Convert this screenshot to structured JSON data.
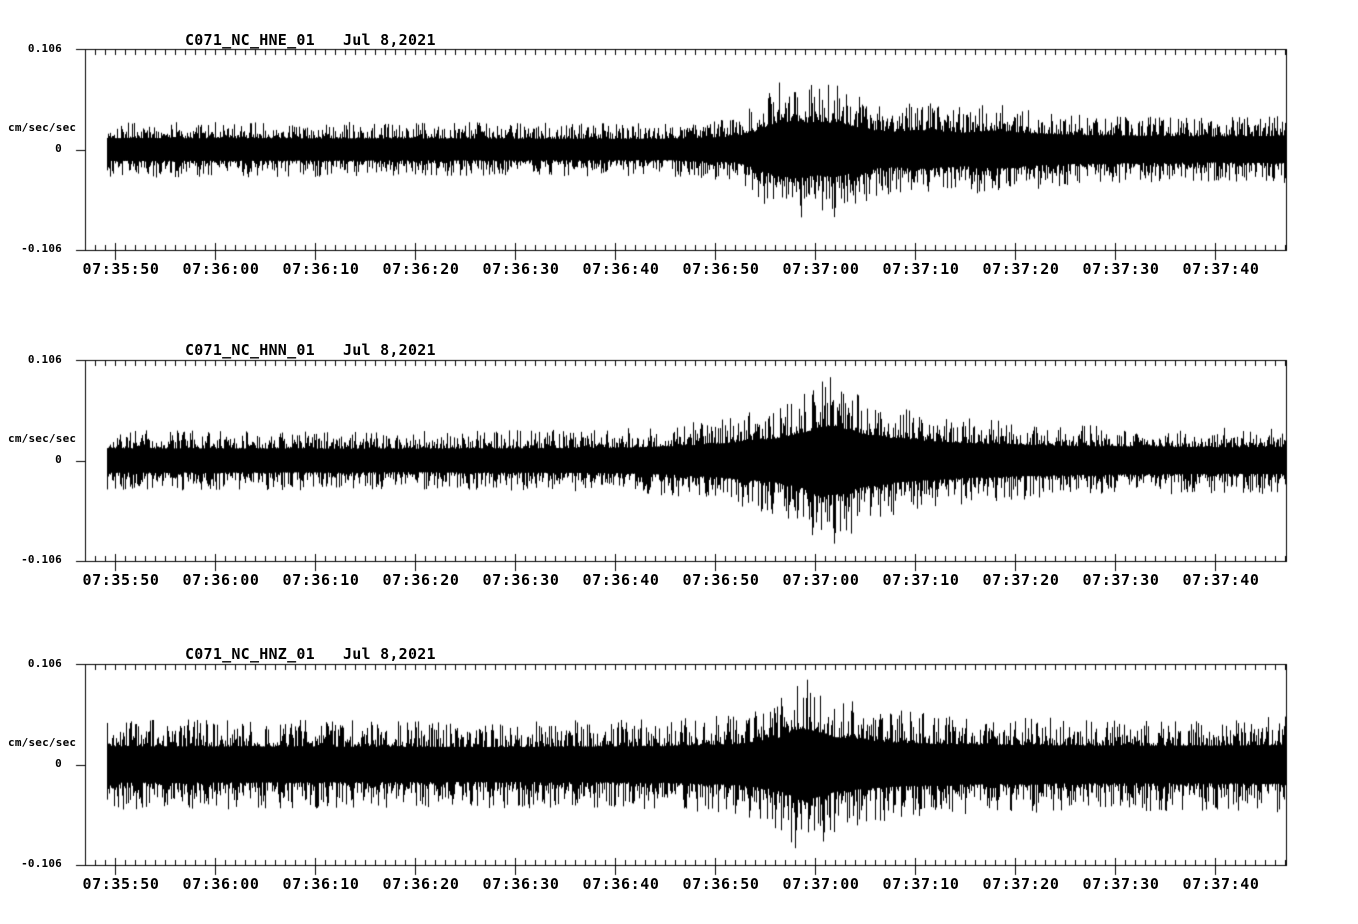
{
  "colors": {
    "background": "#ffffff",
    "trace": "#000000",
    "axis": "#000000",
    "text": "#000000"
  },
  "chart_data": {
    "type": "line",
    "variant": "seismogram-acceleration",
    "units": "cm/sec/sec",
    "ylabel": "cm/sec/sec",
    "y_tick_labels": [
      "0.106",
      "0",
      "-0.106"
    ],
    "ylim": [
      -0.106,
      0.106
    ],
    "x_tick_labels": [
      "07:35:50",
      "07:36:00",
      "07:36:10",
      "07:36:20",
      "07:36:30",
      "07:36:40",
      "07:36:50",
      "07:37:00",
      "07:37:10",
      "07:37:20",
      "07:37:30",
      "07:37:40"
    ],
    "x_major_interval_sec": 10,
    "x_minor_interval_sec": 1,
    "grid": false,
    "legend": "none",
    "panels": [
      {
        "title": "C071_NC_HNE_01",
        "date": "Jul 8,2021",
        "seed": 101,
        "envelope": {
          "t": [
            -1,
            30,
            55,
            62,
            64,
            66,
            68,
            70,
            72,
            74,
            76,
            78,
            80,
            82,
            85,
            88,
            92,
            96,
            102,
            110,
            118
          ],
          "amp": [
            0.03,
            0.029,
            0.028,
            0.034,
            0.048,
            0.07,
            0.075,
            0.068,
            0.072,
            0.06,
            0.05,
            0.046,
            0.052,
            0.048,
            0.044,
            0.05,
            0.042,
            0.038,
            0.036,
            0.034,
            0.036
          ]
        }
      },
      {
        "title": "C071_NC_HNN_01",
        "date": "Jul 8,2021",
        "seed": 202,
        "envelope": {
          "t": [
            -1,
            30,
            50,
            56,
            60,
            63,
            66,
            68,
            70,
            71.5,
            73,
            75,
            78,
            81,
            85,
            90,
            96,
            104,
            112,
            118
          ],
          "amp": [
            0.032,
            0.031,
            0.033,
            0.038,
            0.044,
            0.05,
            0.058,
            0.068,
            0.082,
            0.092,
            0.082,
            0.068,
            0.058,
            0.052,
            0.046,
            0.042,
            0.038,
            0.036,
            0.035,
            0.036
          ]
        }
      },
      {
        "title": "C071_NC_HNZ_01",
        "date": "Jul 8,2021",
        "seed": 303,
        "envelope": {
          "t": [
            -1,
            20,
            40,
            55,
            62,
            65,
            67,
            68.5,
            70,
            72,
            75,
            78,
            82,
            88,
            95,
            105,
            112,
            118
          ],
          "amp": [
            0.048,
            0.047,
            0.046,
            0.048,
            0.054,
            0.062,
            0.075,
            0.095,
            0.088,
            0.072,
            0.064,
            0.058,
            0.054,
            0.052,
            0.05,
            0.049,
            0.05,
            0.051
          ]
        }
      }
    ]
  }
}
